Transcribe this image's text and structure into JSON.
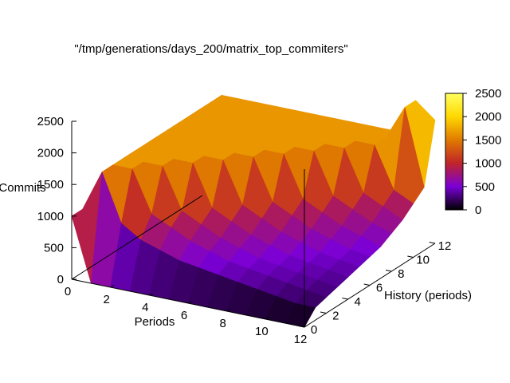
{
  "chart_data": {
    "type": "surface",
    "title": "\"/tmp/generations/days_200/matrix_top_commiters\"",
    "xlabel": "Periods",
    "ylabel": "History (periods)",
    "zlabel": "Commits",
    "xlim": [
      0,
      12
    ],
    "ylim": [
      0,
      12
    ],
    "zlim": [
      0,
      2500
    ],
    "x_ticks": [
      "0",
      "2",
      "4",
      "6",
      "8",
      "10",
      "12"
    ],
    "y_ticks": [
      "0",
      "2",
      "4",
      "6",
      "8",
      "10",
      "12"
    ],
    "z_ticks": [
      "0",
      "500",
      "1000",
      "1500",
      "2000",
      "2500"
    ],
    "colorbar_ticks": [
      "0",
      "500",
      "1000",
      "1500",
      "2000",
      "2500"
    ],
    "colorbar_range": [
      0,
      2500
    ],
    "palette": [
      "#000000",
      "#7a00d6",
      "#c0242a",
      "#e07a00",
      "#ffd800",
      "#ffff60"
    ],
    "grid": false,
    "surface": {
      "x": [
        0,
        1,
        2,
        3,
        4,
        5,
        6,
        7,
        8,
        9,
        10,
        11,
        12
      ],
      "y": [
        0,
        1,
        2,
        3,
        4,
        5,
        6,
        7,
        8,
        9,
        10,
        11,
        12
      ],
      "z": [
        [
          1000,
          1000,
          1000,
          1000,
          1000,
          1000,
          1000,
          1000,
          1000,
          1000,
          1000,
          1000,
          1000
        ],
        [
          0,
          1650,
          1650,
          1650,
          1650,
          1650,
          1650,
          1650,
          1650,
          1650,
          1650,
          1650,
          1650
        ],
        [
          0,
          900,
          1650,
          1650,
          1650,
          1650,
          1650,
          1650,
          1650,
          1650,
          1650,
          1650,
          1650
        ],
        [
          0,
          700,
          1000,
          1650,
          1650,
          1650,
          1650,
          1650,
          1650,
          1650,
          1650,
          1650,
          1650
        ],
        [
          0,
          600,
          850,
          1000,
          1650,
          1650,
          1650,
          1650,
          1650,
          1650,
          1650,
          1650,
          1650
        ],
        [
          0,
          500,
          700,
          850,
          1000,
          1650,
          1650,
          1650,
          1650,
          1650,
          1650,
          1650,
          1650
        ],
        [
          0,
          450,
          600,
          700,
          850,
          1000,
          1650,
          1650,
          1650,
          1650,
          1650,
          1650,
          1650
        ],
        [
          0,
          400,
          500,
          600,
          700,
          850,
          1000,
          1650,
          1650,
          1650,
          1650,
          1650,
          1650
        ],
        [
          0,
          350,
          450,
          500,
          600,
          700,
          850,
          1000,
          1650,
          1650,
          1650,
          1650,
          1650
        ],
        [
          0,
          300,
          400,
          450,
          500,
          600,
          700,
          850,
          1000,
          1650,
          1650,
          1650,
          1650
        ],
        [
          0,
          250,
          350,
          400,
          450,
          500,
          600,
          700,
          850,
          1000,
          1650,
          1650,
          1650
        ],
        [
          0,
          200,
          300,
          350,
          400,
          450,
          500,
          600,
          700,
          850,
          1000,
          2200,
          2200
        ],
        [
          0,
          200,
          250,
          300,
          350,
          400,
          450,
          500,
          600,
          700,
          850,
          1000,
          1950
        ]
      ]
    }
  }
}
